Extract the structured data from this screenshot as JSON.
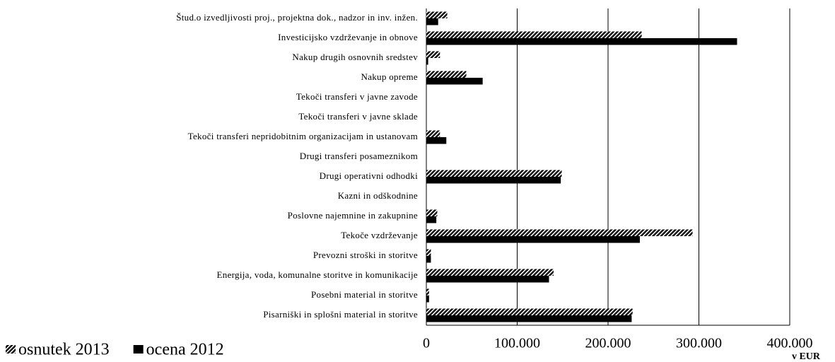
{
  "chart_data": {
    "type": "barh",
    "categories": [
      "Štud.o izvedljivosti proj., projektna dok., nadzor in inv. inžen.",
      "Investicijsko vzdrževanje in obnove",
      "Nakup drugih osnovnih sredstev",
      "Nakup opreme",
      "Tekoči transferi v javne zavode",
      "Tekoči transferi v javne sklade",
      "Tekoči transferi nepridobitnim organizacijam in ustanovam",
      "Drugi transferi posameznikom",
      "Drugi operativni odhodki",
      "Kazni in odškodnine",
      "Poslovne najemnine in zakupnine",
      "Tekoče vzdrževanje",
      "Prevozni stroški in storitve",
      "Energija, voda, komunalne storitve in komunikacije",
      "Posebni material in storitve",
      "Pisarniški in splošni material in storitve"
    ],
    "series": [
      {
        "name": "osnutek 2013",
        "color": "#000000",
        "pattern": "hatch",
        "values": [
          23000,
          237000,
          15000,
          44000,
          0,
          0,
          15000,
          0,
          149000,
          0,
          12000,
          293000,
          5000,
          140000,
          3000,
          227000
        ]
      },
      {
        "name": "ocena 2012",
        "color": "#000000",
        "values": [
          13000,
          342000,
          2000,
          62000,
          0,
          0,
          22000,
          0,
          148000,
          0,
          11000,
          235000,
          5000,
          135000,
          3000,
          226000
        ]
      }
    ],
    "xlim": [
      0,
      400000
    ],
    "xticks": [
      0,
      {
        "value": 100000,
        "label": "100.000"
      },
      {
        "value": 200000,
        "label": "200.000"
      },
      {
        "value": 300000,
        "label": "300.000"
      },
      {
        "value": 400000,
        "label": "400.000"
      }
    ],
    "xlabel": "v EUR",
    "grid": true,
    "legend": "bottom-left"
  }
}
